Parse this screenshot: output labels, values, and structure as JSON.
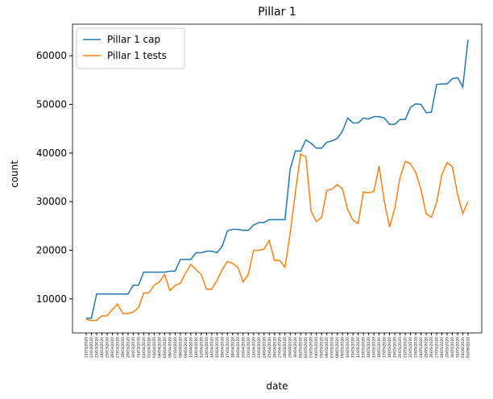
{
  "chart_data": {
    "type": "line",
    "title": "Pillar 1",
    "x_label": "date",
    "y_label": "count",
    "categories": [
      "21/03/2020",
      "22/03/2020",
      "23/03/2020",
      "24/03/2020",
      "25/03/2020",
      "26/03/2020",
      "27/03/2020",
      "28/03/2020",
      "29/03/2020",
      "30/03/2020",
      "31/03/2020",
      "01/04/2020",
      "02/04/2020",
      "03/04/2020",
      "04/04/2020",
      "05/04/2020",
      "06/04/2020",
      "07/04/2020",
      "08/04/2020",
      "09/04/2020",
      "10/04/2020",
      "11/04/2020",
      "12/04/2020",
      "13/04/2020",
      "14/04/2020",
      "15/04/2020",
      "16/04/2020",
      "17/04/2020",
      "18/04/2020",
      "19/04/2020",
      "20/04/2020",
      "21/04/2020",
      "22/04/2020",
      "23/04/2020",
      "24/04/2020",
      "25/04/2020",
      "26/04/2020",
      "27/04/2020",
      "28/04/2020",
      "29/04/2020",
      "30/04/2020",
      "01/05/2020",
      "02/05/2020",
      "03/05/2020",
      "04/05/2020",
      "05/05/2020",
      "06/05/2020",
      "07/05/2020",
      "08/05/2020",
      "09/05/2020",
      "10/05/2020",
      "11/05/2020",
      "12/05/2020",
      "13/05/2020",
      "14/05/2020",
      "15/05/2020",
      "16/05/2020",
      "17/05/2020",
      "18/05/2020",
      "19/05/2020",
      "20/05/2020",
      "21/05/2020",
      "22/05/2020",
      "23/05/2020",
      "24/05/2020",
      "25/05/2020",
      "26/05/2020",
      "27/05/2020",
      "28/05/2020",
      "29/05/2020",
      "30/05/2020",
      "31/05/2020",
      "01/06/2020",
      "02/06/2020"
    ],
    "series": [
      {
        "name": "Pillar 1 cap",
        "color": "#1f77b4",
        "values": [
          6000,
          6000,
          11000,
          11000,
          11000,
          11000,
          11000,
          11000,
          11000,
          12800,
          12800,
          15500,
          15500,
          15500,
          15500,
          15500,
          15700,
          15700,
          18100,
          18100,
          18100,
          19500,
          19500,
          19800,
          19800,
          19500,
          20800,
          24000,
          24300,
          24300,
          24100,
          24100,
          25200,
          25700,
          25700,
          26300,
          26300,
          26300,
          26300,
          36700,
          40400,
          40400,
          42700,
          42000,
          41000,
          41000,
          42200,
          42500,
          43000,
          44500,
          47200,
          46200,
          46200,
          47200,
          47000,
          47500,
          47500,
          47200,
          45900,
          45900,
          46900,
          46900,
          49400,
          50100,
          50000,
          48300,
          48400,
          54100,
          54200,
          54200,
          55300,
          55500,
          53600,
          63300
        ]
      },
      {
        "name": "Pillar 1 tests",
        "color": "#ff7f0e",
        "values": [
          5800,
          5500,
          5600,
          6500,
          6500,
          7800,
          8900,
          7000,
          7000,
          7300,
          8200,
          11200,
          11200,
          12800,
          13500,
          15000,
          11700,
          12800,
          13200,
          15300,
          17100,
          16000,
          15000,
          12000,
          12000,
          13800,
          16000,
          17700,
          17300,
          16500,
          13500,
          15000,
          20000,
          20000,
          20200,
          22000,
          17900,
          17900,
          16500,
          23500,
          32000,
          39800,
          39200,
          28000,
          25900,
          26800,
          32300,
          32600,
          33500,
          32600,
          28300,
          26200,
          25500,
          32000,
          31800,
          32100,
          37300,
          30000,
          24800,
          28600,
          35000,
          38300,
          37800,
          36000,
          32500,
          27500,
          26800,
          29800,
          35600,
          38000,
          37200,
          31500,
          27600,
          30000
        ]
      }
    ],
    "ylim": [
      3000,
      66500
    ],
    "yticks": [
      10000,
      20000,
      30000,
      40000,
      50000,
      60000
    ],
    "legend": "upper left"
  }
}
